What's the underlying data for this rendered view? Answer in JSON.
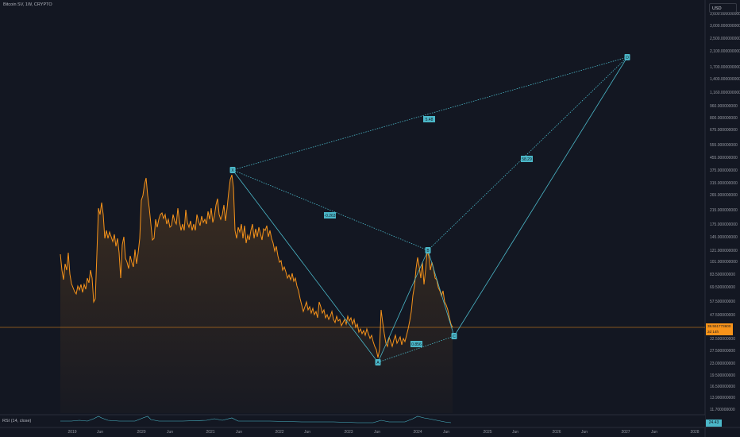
{
  "header": {
    "title": "Bitcoin SV, 1W, CRYPTO",
    "currency": "USD"
  },
  "y_axis": {
    "labels": [
      "3,600.000000000",
      "3,000.000000000",
      "2,500.000000000",
      "2,100.000000000",
      "1,700.000000000",
      "1,400.000000000",
      "1,160.000000000",
      "960.000000000",
      "800.000000000",
      "675.000000000",
      "555.000000000",
      "455.000000000",
      "375.000000000",
      "315.000000000",
      "265.000000000",
      "215.000000000",
      "175.000000000",
      "145.000000000",
      "121.000000000",
      "101.000000000",
      "83.500000000",
      "69.500000000",
      "57.500000000",
      "47.500000000",
      "32.500000000",
      "27.500000000",
      "23.000000000",
      "19.500000000",
      "16.500000000",
      "13.900000000",
      "11.700000000"
    ]
  },
  "x_axis": {
    "labels": [
      "2019",
      "Jun",
      "2020",
      "Jun",
      "2021",
      "Jun",
      "2022",
      "Jun",
      "2023",
      "Jun",
      "2024",
      "Jun",
      "2025",
      "Jun",
      "2026",
      "Jun",
      "2027",
      "Jun",
      "2028"
    ]
  },
  "price": {
    "current": "38.551773600",
    "countdown": "2d 14h"
  },
  "pattern": {
    "points": {
      "X": "X",
      "A": "A",
      "B": "B",
      "C": "C",
      "D": "D"
    },
    "ratios": {
      "xb": "-0.263",
      "ac": "0.856",
      "bd": "58.29",
      "xd": "5.48"
    }
  },
  "rsi": {
    "label": "RSI (14, close)",
    "value": "24.43"
  },
  "colors": {
    "background": "#131722",
    "price_line": "#f7931a",
    "pattern": "#4bb7c8",
    "text": "#9598a1"
  }
}
